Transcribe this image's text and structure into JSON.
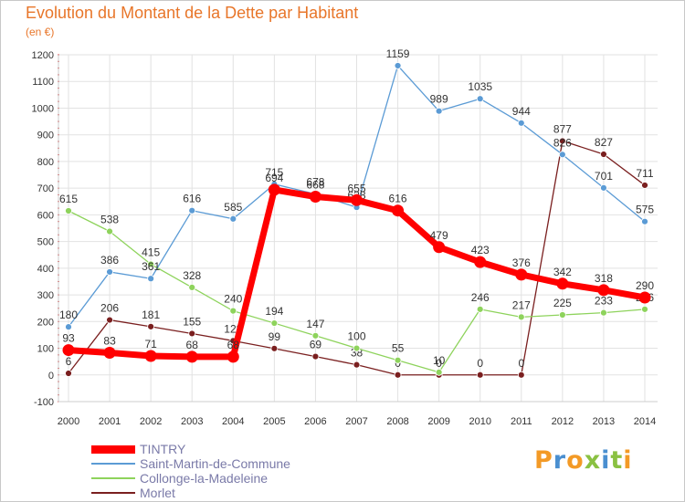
{
  "header": {
    "title": "Evolution du Montant de la Dette par Habitant",
    "unit": "(en €)"
  },
  "logo": {
    "text": "Proxiti",
    "colors": [
      "#f39a26",
      "#4a8fd0",
      "#f39a26",
      "#8ac142",
      "#4a8fd0",
      "#8ac142",
      "#f39a26"
    ]
  },
  "chart_data": {
    "type": "line",
    "title": "Evolution du Montant de la Dette par Habitant",
    "ylabel": "(en €)",
    "xlabel": "",
    "x": [
      "2000",
      "2001",
      "2002",
      "2003",
      "2004",
      "2005",
      "2006",
      "2007",
      "2008",
      "2009",
      "2010",
      "2011",
      "2012",
      "2013",
      "2014"
    ],
    "ylim": [
      -100,
      1200
    ],
    "yticks": [
      -100,
      0,
      100,
      200,
      300,
      400,
      500,
      600,
      700,
      800,
      900,
      1000,
      1100,
      1200
    ],
    "grid": true,
    "legend_position": "bottom-left",
    "series": [
      {
        "name": "Morlet",
        "color": "#7a1f1f",
        "values": [
          6,
          206,
          181,
          155,
          128,
          99,
          69,
          38,
          0,
          0,
          0,
          0,
          877,
          827,
          711
        ]
      },
      {
        "name": "Collonge-la-Madeleine",
        "color": "#8ed35c",
        "values": [
          615,
          538,
          415,
          328,
          240,
          194,
          147,
          100,
          55,
          10,
          246,
          217,
          225,
          233,
          246
        ]
      },
      {
        "name": "Saint-Martin-de-Commune",
        "color": "#5b9bd5",
        "values": [
          180,
          386,
          361,
          616,
          585,
          715,
          678,
          628,
          1159,
          989,
          1035,
          944,
          826,
          701,
          575
        ]
      },
      {
        "name": "TINTRY",
        "color": "#ff0000",
        "values": [
          93,
          83,
          71,
          68,
          68,
          694,
          668,
          655,
          616,
          479,
          423,
          376,
          342,
          318,
          290
        ]
      }
    ],
    "legend_order": [
      "TINTRY",
      "Saint-Martin-de-Commune",
      "Collonge-la-Madeleine",
      "Morlet"
    ]
  }
}
